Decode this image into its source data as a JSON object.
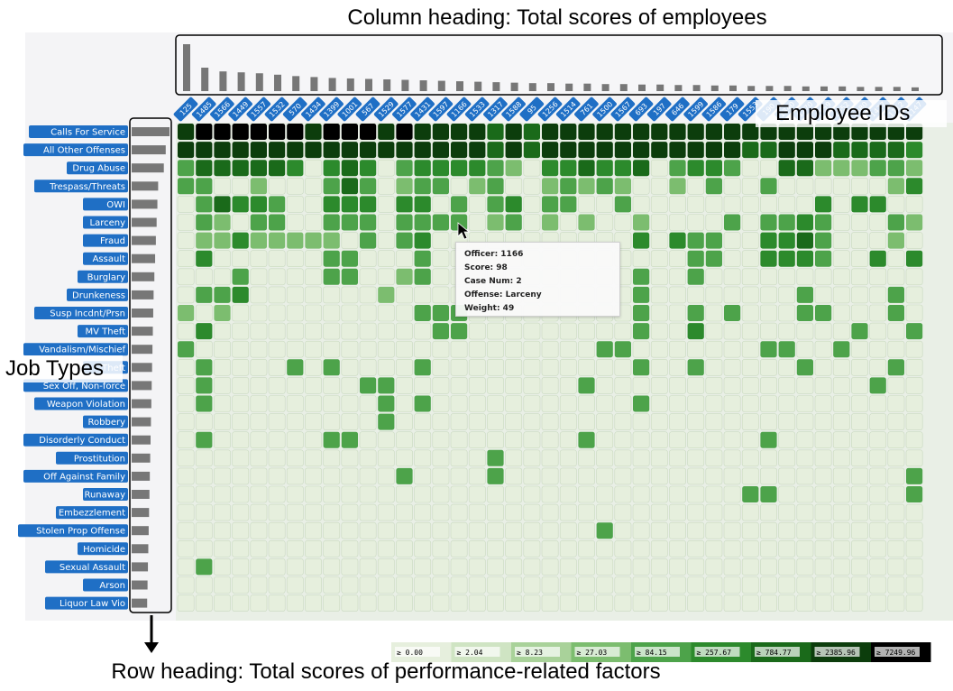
{
  "annotations": {
    "column_heading": "Column heading: Total scores of employees",
    "row_heading": "Row heading: Total scores of performance-related factors",
    "job_types": "Job Types",
    "employee_ids": "Employee IDs"
  },
  "tooltip": {
    "officer": "Officer: 1166",
    "score": "Score: 98",
    "case_num": "Case Num: 2",
    "offense": "Offense: Larceny",
    "weight": "Weight: 49"
  },
  "colors": {
    "blue_label": "#1f6fc5",
    "bar": "#777777",
    "scale": [
      "#e6efdd",
      "#cfe4c3",
      "#a9d29a",
      "#7cbd6f",
      "#4da34a",
      "#2c8a2c",
      "#1a6a1a",
      "#0c3d0c",
      "#000000"
    ]
  },
  "chart_data": {
    "type": "heatmap",
    "employees": [
      "125",
      "1485",
      "1566",
      "1449",
      "1557",
      "1532",
      "570",
      "1434",
      "1399",
      "1001",
      "567",
      "1529",
      "1577",
      "1431",
      "1597",
      "1166",
      "1533",
      "1317",
      "1588",
      "95",
      "1256",
      "1514",
      "761",
      "1500",
      "1567",
      "693",
      "197",
      "646",
      "1599",
      "1586",
      "179",
      "1553",
      "190",
      "1340",
      "1270",
      "1559",
      "1552",
      "1580",
      "1427",
      "1112",
      "1147"
    ],
    "job_types": [
      "Calls For Service",
      "All Other Offenses",
      "Drug Abuse",
      "Trespass/Threats",
      "OWI",
      "Larceny",
      "Fraud",
      "Assault",
      "Burglary",
      "Drunkeness",
      "Susp Incdnt/Prsn",
      "MV Theft",
      "Vandalism/Mischief",
      "Theft",
      "Sex Off, Non-force",
      "Weapon Violation",
      "Robbery",
      "Disorderly Conduct",
      "Prostitution",
      "Off Against Family",
      "Runaway",
      "Embezzlement",
      "Stolen Prop Offense",
      "Homicide",
      "Sexual Assault",
      "Arson",
      "Liquor Law Vio"
    ],
    "column_totals": [
      100,
      50,
      42,
      40,
      38,
      35,
      32,
      30,
      28,
      27,
      26,
      25,
      24,
      23,
      22,
      21,
      20,
      19,
      18,
      17,
      17,
      16,
      16,
      15,
      15,
      14,
      14,
      13,
      13,
      12,
      12,
      11,
      11,
      11,
      10,
      10,
      10,
      9,
      9,
      9,
      8
    ],
    "row_totals": [
      100,
      90,
      85,
      70,
      68,
      66,
      64,
      62,
      60,
      58,
      57,
      56,
      55,
      54,
      53,
      52,
      51,
      50,
      49,
      48,
      47,
      46,
      45,
      44,
      43,
      42,
      41
    ],
    "legend": {
      "thresholds": [
        "≥ 0.00",
        "≥ 2.04",
        "≥ 8.23",
        "≥ 27.03",
        "≥ 84.15",
        "≥ 257.67",
        "≥ 784.77",
        "≥ 2385.96",
        "≥ 7249.96"
      ]
    },
    "cells": [
      [
        7,
        8,
        8,
        8,
        8,
        8,
        8,
        7,
        8,
        8,
        8,
        7,
        8,
        7,
        7,
        7,
        7,
        6,
        7,
        6,
        7,
        7,
        7,
        7,
        7,
        7,
        7,
        7,
        7,
        7,
        7,
        7,
        7,
        7,
        7,
        7,
        7,
        7,
        7,
        7,
        7
      ],
      [
        7,
        7,
        7,
        7,
        7,
        7,
        7,
        7,
        7,
        7,
        7,
        7,
        7,
        7,
        7,
        7,
        7,
        6,
        7,
        6,
        7,
        7,
        7,
        7,
        7,
        7,
        7,
        7,
        7,
        7,
        7,
        6,
        6,
        7,
        7,
        7,
        6,
        6,
        6,
        6,
        5
      ],
      [
        4,
        6,
        6,
        6,
        6,
        6,
        5,
        0,
        5,
        6,
        5,
        0,
        4,
        5,
        5,
        5,
        5,
        4,
        3,
        0,
        5,
        5,
        6,
        5,
        5,
        6,
        0,
        4,
        5,
        5,
        4,
        0,
        0,
        6,
        6,
        3,
        3,
        3,
        4,
        4,
        3
      ],
      [
        4,
        4,
        0,
        0,
        3,
        0,
        0,
        0,
        4,
        6,
        4,
        0,
        3,
        4,
        4,
        0,
        3,
        4,
        0,
        0,
        3,
        4,
        3,
        4,
        3,
        0,
        0,
        3,
        0,
        4,
        0,
        0,
        4,
        0,
        0,
        0,
        0,
        0,
        0,
        3,
        5
      ],
      [
        0,
        4,
        6,
        5,
        5,
        4,
        0,
        0,
        5,
        5,
        5,
        0,
        5,
        5,
        0,
        4,
        0,
        4,
        5,
        0,
        4,
        4,
        0,
        0,
        4,
        0,
        0,
        0,
        0,
        0,
        0,
        0,
        0,
        0,
        0,
        5,
        0,
        5,
        5,
        0,
        0
      ],
      [
        0,
        4,
        3,
        0,
        4,
        4,
        0,
        0,
        4,
        4,
        4,
        0,
        4,
        4,
        4,
        4,
        0,
        3,
        4,
        0,
        3,
        0,
        3,
        0,
        0,
        3,
        0,
        0,
        0,
        0,
        4,
        0,
        4,
        4,
        5,
        4,
        0,
        0,
        0,
        4,
        3
      ],
      [
        0,
        3,
        3,
        5,
        3,
        3,
        3,
        3,
        3,
        0,
        4,
        0,
        4,
        5,
        0,
        0,
        0,
        0,
        0,
        0,
        0,
        0,
        0,
        0,
        0,
        5,
        0,
        5,
        4,
        4,
        0,
        0,
        5,
        5,
        6,
        4,
        0,
        0,
        0,
        3,
        0
      ],
      [
        0,
        5,
        0,
        0,
        0,
        0,
        0,
        0,
        4,
        4,
        0,
        0,
        0,
        4,
        0,
        0,
        0,
        0,
        0,
        0,
        0,
        0,
        0,
        0,
        0,
        0,
        0,
        0,
        4,
        4,
        0,
        0,
        5,
        5,
        5,
        4,
        0,
        0,
        5,
        0,
        5
      ],
      [
        0,
        0,
        0,
        4,
        0,
        0,
        0,
        0,
        4,
        4,
        0,
        0,
        3,
        4,
        0,
        0,
        0,
        0,
        0,
        0,
        0,
        0,
        0,
        0,
        0,
        4,
        0,
        0,
        4,
        0,
        0,
        0,
        0,
        0,
        0,
        0,
        0,
        0,
        0,
        0,
        0
      ],
      [
        0,
        4,
        4,
        5,
        0,
        0,
        0,
        0,
        0,
        0,
        0,
        3,
        0,
        0,
        0,
        0,
        0,
        0,
        0,
        0,
        0,
        0,
        0,
        0,
        0,
        4,
        0,
        0,
        0,
        0,
        0,
        0,
        0,
        0,
        4,
        0,
        0,
        0,
        0,
        4,
        0
      ],
      [
        3,
        0,
        3,
        0,
        0,
        0,
        0,
        0,
        0,
        0,
        0,
        0,
        0,
        4,
        4,
        4,
        0,
        0,
        0,
        0,
        0,
        0,
        0,
        0,
        0,
        4,
        0,
        0,
        4,
        0,
        4,
        0,
        0,
        0,
        4,
        4,
        0,
        0,
        0,
        4,
        0
      ],
      [
        0,
        5,
        0,
        0,
        0,
        0,
        0,
        0,
        0,
        0,
        0,
        0,
        0,
        0,
        4,
        4,
        0,
        0,
        0,
        0,
        0,
        0,
        0,
        0,
        0,
        4,
        0,
        0,
        5,
        0,
        0,
        0,
        0,
        0,
        0,
        0,
        0,
        4,
        0,
        0,
        4
      ],
      [
        4,
        0,
        0,
        0,
        0,
        0,
        0,
        0,
        0,
        0,
        0,
        0,
        0,
        0,
        0,
        0,
        0,
        0,
        0,
        0,
        0,
        0,
        0,
        4,
        4,
        0,
        0,
        0,
        0,
        0,
        0,
        0,
        4,
        4,
        0,
        0,
        4,
        0,
        0,
        0,
        0
      ],
      [
        0,
        4,
        0,
        0,
        0,
        0,
        4,
        0,
        4,
        0,
        0,
        0,
        0,
        4,
        0,
        0,
        0,
        0,
        0,
        0,
        0,
        0,
        0,
        0,
        0,
        4,
        0,
        0,
        4,
        0,
        0,
        0,
        0,
        0,
        4,
        0,
        0,
        0,
        0,
        4,
        0
      ],
      [
        0,
        4,
        0,
        0,
        0,
        0,
        0,
        0,
        0,
        0,
        4,
        4,
        0,
        0,
        0,
        0,
        0,
        0,
        0,
        0,
        0,
        0,
        4,
        0,
        0,
        0,
        0,
        0,
        0,
        0,
        0,
        0,
        0,
        0,
        0,
        0,
        0,
        0,
        4,
        0,
        0
      ],
      [
        0,
        4,
        0,
        0,
        0,
        0,
        0,
        0,
        0,
        0,
        0,
        4,
        0,
        4,
        0,
        0,
        0,
        0,
        0,
        0,
        0,
        0,
        0,
        0,
        0,
        4,
        0,
        0,
        0,
        0,
        0,
        0,
        0,
        0,
        0,
        0,
        0,
        0,
        0,
        0,
        0
      ],
      [
        0,
        0,
        0,
        0,
        0,
        0,
        0,
        0,
        0,
        0,
        0,
        4,
        0,
        0,
        0,
        0,
        0,
        0,
        0,
        0,
        0,
        0,
        0,
        0,
        0,
        0,
        0,
        0,
        0,
        0,
        0,
        0,
        0,
        0,
        0,
        0,
        0,
        0,
        0,
        0,
        0
      ],
      [
        0,
        4,
        0,
        0,
        0,
        0,
        0,
        0,
        4,
        4,
        0,
        0,
        0,
        0,
        0,
        0,
        0,
        0,
        0,
        0,
        0,
        0,
        4,
        0,
        0,
        0,
        0,
        0,
        0,
        0,
        0,
        0,
        4,
        0,
        0,
        0,
        0,
        0,
        0,
        0,
        0
      ],
      [
        0,
        0,
        0,
        0,
        0,
        0,
        0,
        0,
        0,
        0,
        0,
        0,
        0,
        0,
        0,
        0,
        0,
        4,
        0,
        0,
        0,
        0,
        0,
        0,
        0,
        0,
        0,
        0,
        0,
        0,
        0,
        0,
        0,
        0,
        0,
        0,
        0,
        0,
        0,
        0,
        0
      ],
      [
        0,
        0,
        0,
        0,
        0,
        0,
        0,
        0,
        0,
        0,
        0,
        0,
        4,
        0,
        0,
        0,
        0,
        4,
        0,
        0,
        0,
        0,
        0,
        0,
        0,
        0,
        0,
        0,
        0,
        0,
        0,
        0,
        0,
        0,
        0,
        0,
        0,
        0,
        0,
        0,
        4
      ],
      [
        0,
        0,
        0,
        0,
        0,
        0,
        0,
        0,
        0,
        0,
        0,
        0,
        0,
        0,
        0,
        0,
        0,
        0,
        0,
        0,
        0,
        0,
        0,
        0,
        0,
        0,
        0,
        0,
        0,
        0,
        0,
        4,
        4,
        0,
        0,
        0,
        0,
        0,
        0,
        0,
        4
      ],
      [
        0,
        0,
        0,
        0,
        0,
        0,
        0,
        0,
        0,
        0,
        0,
        0,
        0,
        0,
        0,
        0,
        0,
        0,
        0,
        0,
        0,
        0,
        0,
        0,
        0,
        0,
        0,
        0,
        0,
        0,
        0,
        0,
        0,
        0,
        0,
        0,
        0,
        0,
        0,
        0,
        0
      ],
      [
        0,
        0,
        0,
        0,
        0,
        0,
        0,
        0,
        0,
        0,
        0,
        0,
        0,
        0,
        0,
        0,
        0,
        0,
        0,
        0,
        0,
        0,
        0,
        4,
        0,
        0,
        0,
        0,
        0,
        0,
        0,
        0,
        0,
        0,
        0,
        0,
        0,
        0,
        0,
        0,
        0
      ],
      [
        0,
        0,
        0,
        0,
        0,
        0,
        0,
        0,
        0,
        0,
        0,
        0,
        0,
        0,
        0,
        0,
        0,
        0,
        0,
        0,
        0,
        0,
        0,
        0,
        0,
        0,
        0,
        0,
        0,
        0,
        0,
        0,
        0,
        0,
        0,
        0,
        0,
        0,
        0,
        0,
        0
      ],
      [
        0,
        4,
        0,
        0,
        0,
        0,
        0,
        0,
        0,
        0,
        0,
        0,
        0,
        0,
        0,
        0,
        0,
        0,
        0,
        0,
        0,
        0,
        0,
        0,
        0,
        0,
        0,
        0,
        0,
        0,
        0,
        0,
        0,
        0,
        0,
        0,
        0,
        0,
        0,
        0,
        0
      ],
      [
        0,
        0,
        0,
        0,
        0,
        0,
        0,
        0,
        0,
        0,
        0,
        0,
        0,
        0,
        0,
        0,
        0,
        0,
        0,
        0,
        0,
        0,
        0,
        0,
        0,
        0,
        0,
        0,
        0,
        0,
        0,
        0,
        0,
        0,
        0,
        0,
        0,
        0,
        0,
        0,
        0
      ],
      [
        0,
        0,
        0,
        0,
        0,
        0,
        0,
        0,
        0,
        0,
        0,
        0,
        0,
        0,
        0,
        0,
        0,
        0,
        0,
        0,
        0,
        0,
        0,
        0,
        0,
        0,
        0,
        0,
        0,
        0,
        0,
        0,
        0,
        0,
        0,
        0,
        0,
        0,
        0,
        0,
        0
      ]
    ]
  }
}
